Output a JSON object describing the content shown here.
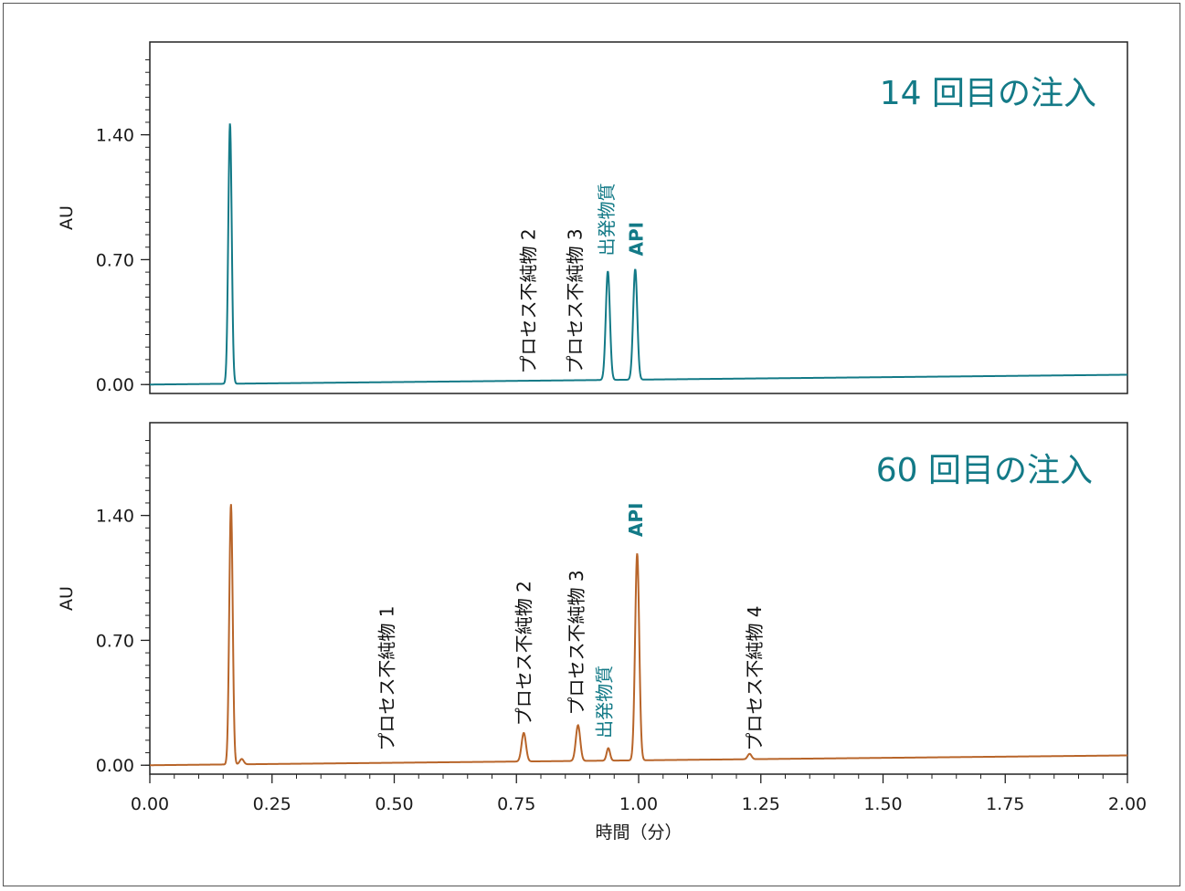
{
  "chart_data": [
    {
      "type": "line",
      "title": "14 回目の注入",
      "ylabel": "AU",
      "xlim": [
        0,
        2.0
      ],
      "ylim": [
        -0.05,
        1.92
      ],
      "yticks": [
        "1.40",
        "0.70",
        "0.00"
      ],
      "yticks_values": [
        1.4,
        0.7,
        0.0
      ],
      "series": [
        {
          "color": "#137a87",
          "baseline": [
            [
              0.0,
              0.0
            ],
            [
              2.0,
              0.055
            ]
          ],
          "peaks": [
            {
              "x": 0.164,
              "height": 1.46,
              "width": 0.0035
            },
            {
              "x": 0.937,
              "height": 0.61,
              "width": 0.0042
            },
            {
              "x": 0.993,
              "height": 0.62,
              "width": 0.0042
            }
          ]
        }
      ],
      "annotations": [
        {
          "text": "プロセス不純物 2",
          "x": 0.775,
          "y": 0.06,
          "color": "#111111"
        },
        {
          "text": "プロセス不純物 3",
          "x": 0.87,
          "y": 0.06,
          "color": "#111111"
        },
        {
          "text": "出発物質",
          "x": 0.935,
          "y": 0.72,
          "color": "#137a87"
        },
        {
          "text": "API",
          "x": 0.995,
          "y": 0.72,
          "color": "#137a87"
        }
      ]
    },
    {
      "type": "line",
      "title": "60 回目の注入",
      "ylabel": "AU",
      "xlabel": "時間（分）",
      "xlim": [
        0,
        2.0
      ],
      "ylim": [
        -0.05,
        1.92
      ],
      "yticks": [
        "1.40",
        "0.70",
        "0.00"
      ],
      "yticks_values": [
        1.4,
        0.7,
        0.0
      ],
      "xticks": [
        "0.00",
        "0.25",
        "0.50",
        "0.75",
        "1.00",
        "1.25",
        "1.50",
        "1.75",
        "2.00"
      ],
      "xticks_values": [
        0.0,
        0.25,
        0.5,
        0.75,
        1.0,
        1.25,
        1.5,
        1.75,
        2.0
      ],
      "series": [
        {
          "color": "#b8652a",
          "baseline": [
            [
              0.0,
              0.0
            ],
            [
              2.0,
              0.055
            ]
          ],
          "peaks": [
            {
              "x": 0.166,
              "height": 1.46,
              "width": 0.0035
            },
            {
              "x": 0.188,
              "height": 0.03,
              "width": 0.004
            },
            {
              "x": 0.765,
              "height": 0.16,
              "width": 0.0045
            },
            {
              "x": 0.876,
              "height": 0.2,
              "width": 0.0045
            },
            {
              "x": 0.938,
              "height": 0.07,
              "width": 0.0035
            },
            {
              "x": 0.997,
              "height": 1.16,
              "width": 0.0042
            },
            {
              "x": 1.227,
              "height": 0.03,
              "width": 0.004
            }
          ]
        }
      ],
      "annotations": [
        {
          "text": "プロセス不純物 1",
          "x": 0.485,
          "y": 0.08,
          "color": "#111111"
        },
        {
          "text": "プロセス不純物 2",
          "x": 0.765,
          "y": 0.22,
          "color": "#111111"
        },
        {
          "text": "プロセス不純物 3",
          "x": 0.873,
          "y": 0.28,
          "color": "#111111"
        },
        {
          "text": "出発物質",
          "x": 0.93,
          "y": 0.15,
          "color": "#137a87"
        },
        {
          "text": "API",
          "x": 0.994,
          "y": 1.28,
          "color": "#137a87"
        },
        {
          "text": "プロセス不純物 4",
          "x": 1.237,
          "y": 0.08,
          "color": "#111111"
        }
      ]
    }
  ]
}
